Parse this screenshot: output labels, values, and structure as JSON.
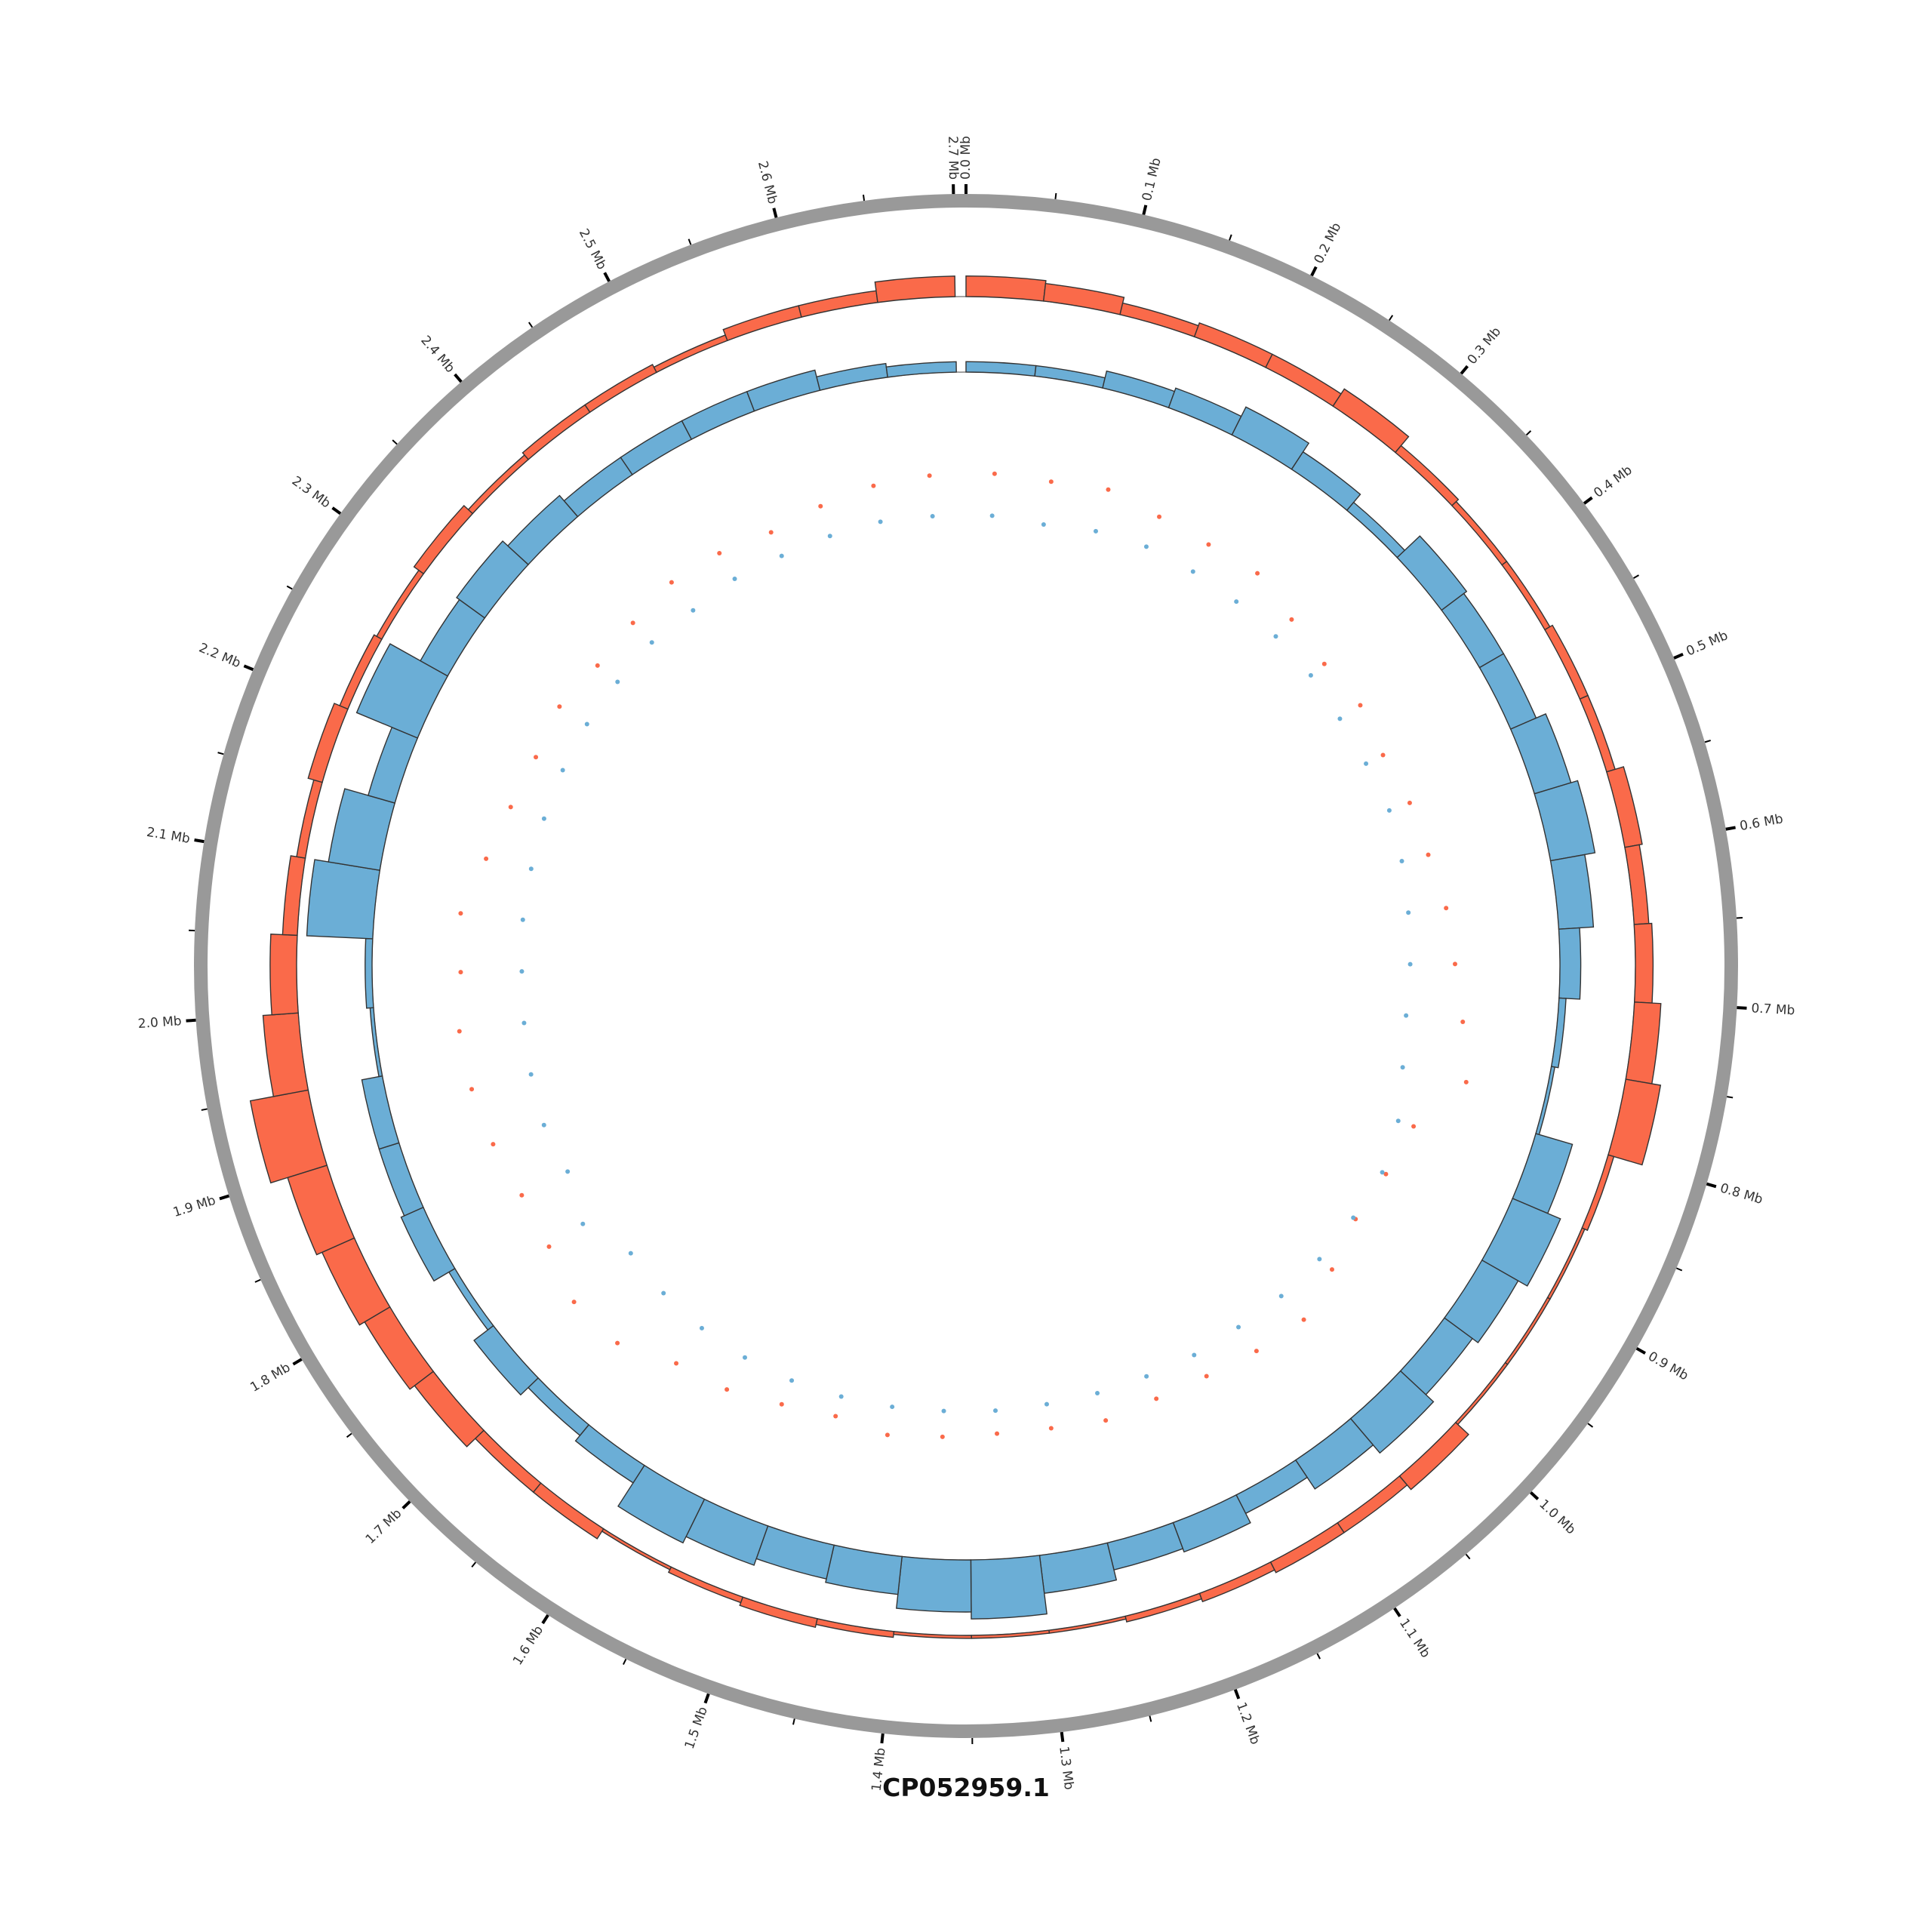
{
  "title": "CP052959.1",
  "ideogram": {
    "length_mb": 2.707,
    "color": "#999999",
    "major_tick_labels": [
      "0.0 Mb",
      "0.1 Mb",
      "0.2 Mb",
      "0.3 Mb",
      "0.4 Mb",
      "0.5 Mb",
      "0.6 Mb",
      "0.7 Mb",
      "0.8 Mb",
      "0.9 Mb",
      "1.0 Mb",
      "1.1 Mb",
      "1.2 Mb",
      "1.3 Mb",
      "1.4 Mb",
      "1.5 Mb",
      "1.6 Mb",
      "1.7 Mb",
      "1.8 Mb",
      "1.9 Mb",
      "2.0 Mb",
      "2.1 Mb",
      "2.2 Mb",
      "2.3 Mb",
      "2.4 Mb",
      "2.5 Mb",
      "2.6 Mb",
      "2.7 Mb"
    ],
    "major_tick_interval_mb": 0.1,
    "minor_tick_interval_mb": 0.05
  },
  "chart_data": [
    {
      "type": "bar",
      "layout": "circular histogram (outer track)",
      "color": "#fa6a4a",
      "bin_size_mb": 0.05,
      "values": [
        0.35,
        0.3,
        0.2,
        0.25,
        0.25,
        0.35,
        0.15,
        0.1,
        0.1,
        0.15,
        0.15,
        0.3,
        0.25,
        0.3,
        0.45,
        0.6,
        0.1,
        0.05,
        0.05,
        0.05,
        0.3,
        0.2,
        0.2,
        0.15,
        0.1,
        0.05,
        0.05,
        0.05,
        0.1,
        0.15,
        0.1,
        0.05,
        0.2,
        0.2,
        0.4,
        0.5,
        0.6,
        0.7,
        1.0,
        0.6,
        0.45,
        0.25,
        0.15,
        0.25,
        0.15,
        0.1,
        0.2,
        0.1,
        0.15,
        0.15,
        0.1,
        0.2,
        0.2,
        0.35
      ]
    },
    {
      "type": "bar",
      "layout": "circular histogram (inner track)",
      "color": "#6baed6",
      "bin_size_mb": 0.05,
      "values": [
        0.15,
        0.15,
        0.25,
        0.3,
        0.45,
        0.3,
        0.15,
        0.45,
        0.4,
        0.4,
        0.55,
        0.65,
        0.5,
        0.3,
        0.1,
        0.05,
        0.55,
        0.75,
        0.6,
        0.5,
        0.65,
        0.5,
        0.3,
        0.45,
        0.4,
        0.55,
        0.85,
        0.75,
        0.55,
        0.5,
        0.6,
        0.7,
        0.3,
        0.2,
        0.35,
        0.1,
        0.35,
        0.3,
        0.3,
        0.05,
        0.1,
        0.95,
        0.75,
        0.4,
        0.95,
        0.45,
        0.5,
        0.4,
        0.3,
        0.3,
        0.3,
        0.3,
        0.2,
        0.15
      ]
    },
    {
      "type": "scatter",
      "layout": "circular scatter (innermost track)",
      "x_start_mb": 0.025,
      "x_step_mb": 0.05,
      "series": [
        {
          "color": "#fa6a4a",
          "values": [
            0.63,
            0.62,
            0.66,
            0.6,
            0.58,
            0.6,
            0.5,
            0.45,
            0.48,
            0.44,
            0.48,
            0.5,
            0.56,
            0.6,
            0.68,
            0.78,
            0.5,
            0.45,
            0.42,
            0.5,
            0.6,
            0.55,
            0.5,
            0.48,
            0.5,
            0.46,
            0.45,
            0.47,
            0.5,
            0.45,
            0.5,
            0.58,
            0.62,
            0.78,
            0.8,
            0.7,
            0.68,
            0.72,
            0.75,
            0.76,
            0.72,
            0.74,
            0.62,
            0.55,
            0.52,
            0.55,
            0.5,
            0.52,
            0.56,
            0.54,
            0.5,
            0.55,
            0.6,
            0.62
          ]
        },
        {
          "color": "#6baed6",
          "values": [
            0.32,
            0.3,
            0.34,
            0.36,
            0.35,
            0.34,
            0.33,
            0.32,
            0.3,
            0.3,
            0.32,
            0.3,
            0.28,
            0.27,
            0.26,
            0.3,
            0.38,
            0.42,
            0.4,
            0.38,
            0.36,
            0.33,
            0.32,
            0.3,
            0.29,
            0.28,
            0.28,
            0.28,
            0.29,
            0.3,
            0.31,
            0.31,
            0.3,
            0.28,
            0.25,
            0.4,
            0.3,
            0.32,
            0.3,
            0.28,
            0.27,
            0.28,
            0.28,
            0.29,
            0.3,
            0.31,
            0.31,
            0.32,
            0.3,
            0.32,
            0.31,
            0.32,
            0.33,
            0.32
          ]
        }
      ]
    }
  ]
}
